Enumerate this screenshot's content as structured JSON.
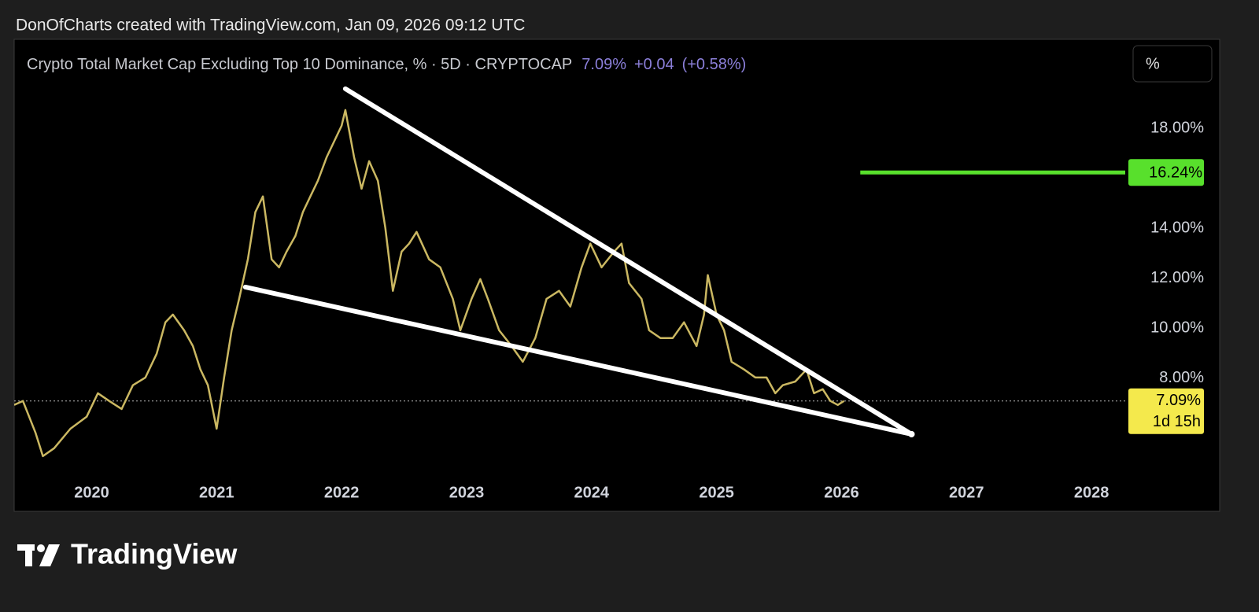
{
  "attribution": "DonOfCharts created with TradingView.com, Jan 09, 2026 09:12 UTC",
  "brand": "TradingView",
  "scale_button": "%",
  "chart_data": {
    "type": "line",
    "title": "Crypto Total Market Cap Excluding Top 10 Dominance, % · 5D · CRYPTOCAP",
    "header_values": [
      "7.09%",
      "+0.04",
      "(+0.58%)"
    ],
    "series": [
      {
        "name": "CRYPTOCAP",
        "color": "#cbb862",
        "x": [
          2019.38,
          2019.45,
          2019.55,
          2019.61,
          2019.7,
          2019.83,
          2019.96,
          2020.05,
          2020.14,
          2020.24,
          2020.33,
          2020.43,
          2020.52,
          2020.59,
          2020.65,
          2020.74,
          2020.81,
          2020.87,
          2020.93,
          2021.0,
          2021.06,
          2021.12,
          2021.18,
          2021.25,
          2021.31,
          2021.37,
          2021.44,
          2021.5,
          2021.56,
          2021.63,
          2021.69,
          2021.75,
          2021.81,
          2021.88,
          2021.94,
          2022.0,
          2022.03,
          2022.1,
          2022.16,
          2022.22,
          2022.29,
          2022.35,
          2022.41,
          2022.48,
          2022.54,
          2022.6,
          2022.7,
          2022.79,
          2022.89,
          2022.95,
          2023.04,
          2023.11,
          2023.17,
          2023.26,
          2023.36,
          2023.45,
          2023.55,
          2023.64,
          2023.74,
          2023.83,
          2023.92,
          2023.99,
          2024.08,
          2024.18,
          2024.24,
          2024.3,
          2024.4,
          2024.46,
          2024.55,
          2024.65,
          2024.74,
          2024.84,
          2024.9,
          2024.93,
          2025.0,
          2025.06,
          2025.12,
          2025.22,
          2025.31,
          2025.4,
          2025.47,
          2025.53,
          2025.63,
          2025.72,
          2025.78,
          2025.85,
          2025.91,
          2025.97,
          2026.02
        ],
        "values": [
          6.93,
          7.09,
          5.83,
          4.88,
          5.2,
          5.98,
          6.46,
          7.4,
          7.09,
          6.77,
          7.72,
          8.03,
          8.98,
          10.24,
          10.55,
          9.92,
          9.29,
          8.35,
          7.72,
          5.98,
          8.03,
          9.92,
          11.18,
          12.76,
          14.65,
          15.28,
          12.76,
          12.44,
          13.07,
          13.7,
          14.65,
          15.28,
          15.91,
          16.85,
          17.48,
          18.11,
          18.74,
          16.85,
          15.59,
          16.69,
          15.91,
          14.02,
          11.5,
          13.07,
          13.39,
          13.86,
          12.76,
          12.44,
          11.18,
          9.92,
          11.18,
          11.97,
          11.18,
          9.92,
          9.29,
          8.66,
          9.61,
          11.18,
          11.5,
          10.87,
          12.44,
          13.39,
          12.44,
          13.07,
          13.39,
          11.81,
          11.18,
          9.92,
          9.61,
          9.61,
          10.24,
          9.29,
          10.55,
          12.13,
          10.55,
          9.92,
          8.66,
          8.35,
          8.03,
          8.03,
          7.4,
          7.72,
          7.87,
          8.35,
          7.4,
          7.56,
          7.09,
          6.93,
          7.09
        ]
      }
    ],
    "trendlines": [
      {
        "color": "#ffffff",
        "x": [
          2022.03,
          2026.56
        ],
        "y": [
          19.59,
          5.76
        ]
      },
      {
        "color": "#ffffff",
        "x": [
          2021.23,
          2026.56
        ],
        "y": [
          11.65,
          5.76
        ]
      }
    ],
    "price_line": {
      "value": 16.24,
      "label": "16.24%",
      "x_start": 2026.15,
      "color": "#58e02c"
    },
    "last_price": {
      "value": 7.09,
      "label": "7.09%",
      "countdown": "1d 15h",
      "color": "#f4e94c"
    },
    "xlim": [
      2019.38,
      2028.27
    ],
    "ylim": [
      4.09,
      21.57
    ],
    "xticks": [
      2020,
      2021,
      2022,
      2023,
      2024,
      2025,
      2026,
      2027,
      2028
    ],
    "yticks": [
      {
        "value": 8,
        "label": "8.00%"
      },
      {
        "value": 10,
        "label": "10.00%"
      },
      {
        "value": 12,
        "label": "12.00%"
      },
      {
        "value": 14,
        "label": "14.00%"
      },
      {
        "value": 18,
        "label": "18.00%"
      }
    ]
  }
}
